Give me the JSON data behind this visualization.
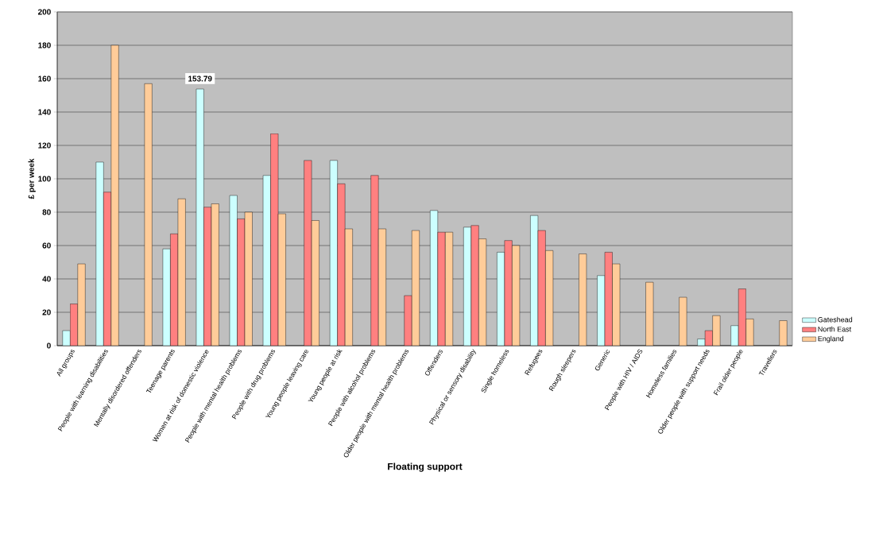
{
  "chart_data": {
    "type": "bar",
    "xlabel": "Floating support",
    "ylabel": "£ per week",
    "categories": [
      "All groups",
      "People with learning disabilities",
      "Mentally disordered offenders",
      "Teenage parents",
      "Women at risk of domestic violence",
      "People with mental health problems",
      "People with drug problems",
      "Young people leaving care",
      "Young people at risk",
      "People with alcohol problems",
      "Older people with mental health problems",
      "Offenders",
      "Physical or sensory disability",
      "Single homeless",
      "Refugees",
      "Rough sleepers",
      "Generic",
      "People with HIV / AIDS",
      "Homeless families",
      "Older people with support needs",
      "Frail older people",
      "Travellers"
    ],
    "series": [
      {
        "name": "Gateshead",
        "color": "#ccffff",
        "values": [
          9,
          110,
          null,
          58,
          153.79,
          90,
          102,
          null,
          111,
          null,
          null,
          81,
          71,
          56,
          78,
          null,
          42,
          null,
          null,
          4,
          12,
          null
        ],
        "value_labels": [
          null,
          null,
          null,
          null,
          "153.79",
          null,
          null,
          null,
          null,
          null,
          null,
          null,
          null,
          null,
          null,
          null,
          null,
          null,
          null,
          null,
          null,
          null
        ]
      },
      {
        "name": "North East",
        "color": "#ff8080",
        "values": [
          25,
          92,
          null,
          67,
          83,
          76,
          127,
          111,
          97,
          102,
          30,
          68,
          72,
          63,
          69,
          null,
          56,
          null,
          null,
          9,
          34,
          null
        ]
      },
      {
        "name": "England",
        "color": "#ffcc99",
        "values": [
          49,
          180,
          157,
          88,
          85,
          80,
          79,
          75,
          70,
          70,
          69,
          68,
          64,
          60,
          57,
          55,
          49,
          38,
          29,
          18,
          16,
          15
        ]
      }
    ],
    "ylim": [
      0,
      200
    ],
    "yticks": [
      0,
      20,
      40,
      60,
      80,
      100,
      120,
      140,
      160,
      180,
      200
    ],
    "grid": "y",
    "legend": "right"
  }
}
